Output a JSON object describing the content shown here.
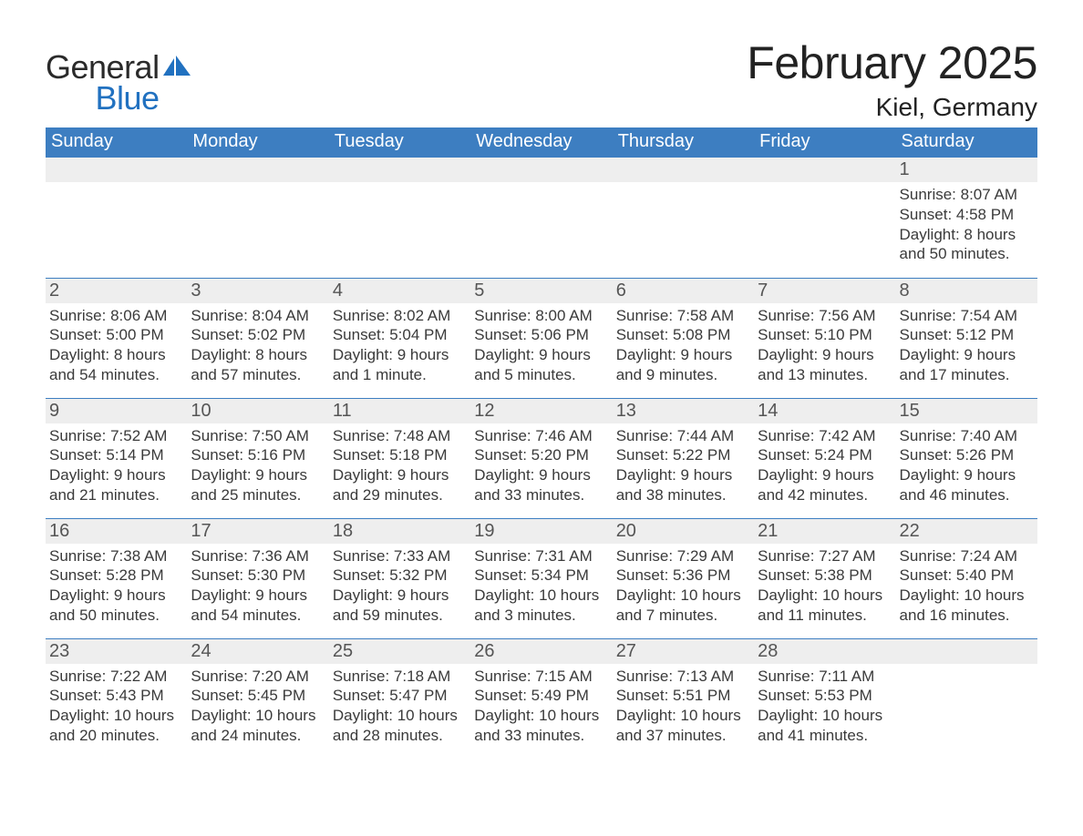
{
  "brand": {
    "word1": "General",
    "word2": "Blue"
  },
  "title": {
    "month_year": "February 2025",
    "location": "Kiel, Germany"
  },
  "colors": {
    "header_blue": "#3d7ec1",
    "row_border": "#3d7ec1",
    "daynum_bg": "#eeeeee",
    "text_dark": "#2a2a2a",
    "logo_blue": "#2171c0"
  },
  "weekdays": [
    "Sunday",
    "Monday",
    "Tuesday",
    "Wednesday",
    "Thursday",
    "Friday",
    "Saturday"
  ],
  "weeks": [
    [
      {
        "n": "",
        "sunrise": "",
        "sunset": "",
        "daylight_l1": "",
        "daylight_l2": ""
      },
      {
        "n": "",
        "sunrise": "",
        "sunset": "",
        "daylight_l1": "",
        "daylight_l2": ""
      },
      {
        "n": "",
        "sunrise": "",
        "sunset": "",
        "daylight_l1": "",
        "daylight_l2": ""
      },
      {
        "n": "",
        "sunrise": "",
        "sunset": "",
        "daylight_l1": "",
        "daylight_l2": ""
      },
      {
        "n": "",
        "sunrise": "",
        "sunset": "",
        "daylight_l1": "",
        "daylight_l2": ""
      },
      {
        "n": "",
        "sunrise": "",
        "sunset": "",
        "daylight_l1": "",
        "daylight_l2": ""
      },
      {
        "n": "1",
        "sunrise": "Sunrise: 8:07 AM",
        "sunset": "Sunset: 4:58 PM",
        "daylight_l1": "Daylight: 8 hours",
        "daylight_l2": "and 50 minutes."
      }
    ],
    [
      {
        "n": "2",
        "sunrise": "Sunrise: 8:06 AM",
        "sunset": "Sunset: 5:00 PM",
        "daylight_l1": "Daylight: 8 hours",
        "daylight_l2": "and 54 minutes."
      },
      {
        "n": "3",
        "sunrise": "Sunrise: 8:04 AM",
        "sunset": "Sunset: 5:02 PM",
        "daylight_l1": "Daylight: 8 hours",
        "daylight_l2": "and 57 minutes."
      },
      {
        "n": "4",
        "sunrise": "Sunrise: 8:02 AM",
        "sunset": "Sunset: 5:04 PM",
        "daylight_l1": "Daylight: 9 hours",
        "daylight_l2": "and 1 minute."
      },
      {
        "n": "5",
        "sunrise": "Sunrise: 8:00 AM",
        "sunset": "Sunset: 5:06 PM",
        "daylight_l1": "Daylight: 9 hours",
        "daylight_l2": "and 5 minutes."
      },
      {
        "n": "6",
        "sunrise": "Sunrise: 7:58 AM",
        "sunset": "Sunset: 5:08 PM",
        "daylight_l1": "Daylight: 9 hours",
        "daylight_l2": "and 9 minutes."
      },
      {
        "n": "7",
        "sunrise": "Sunrise: 7:56 AM",
        "sunset": "Sunset: 5:10 PM",
        "daylight_l1": "Daylight: 9 hours",
        "daylight_l2": "and 13 minutes."
      },
      {
        "n": "8",
        "sunrise": "Sunrise: 7:54 AM",
        "sunset": "Sunset: 5:12 PM",
        "daylight_l1": "Daylight: 9 hours",
        "daylight_l2": "and 17 minutes."
      }
    ],
    [
      {
        "n": "9",
        "sunrise": "Sunrise: 7:52 AM",
        "sunset": "Sunset: 5:14 PM",
        "daylight_l1": "Daylight: 9 hours",
        "daylight_l2": "and 21 minutes."
      },
      {
        "n": "10",
        "sunrise": "Sunrise: 7:50 AM",
        "sunset": "Sunset: 5:16 PM",
        "daylight_l1": "Daylight: 9 hours",
        "daylight_l2": "and 25 minutes."
      },
      {
        "n": "11",
        "sunrise": "Sunrise: 7:48 AM",
        "sunset": "Sunset: 5:18 PM",
        "daylight_l1": "Daylight: 9 hours",
        "daylight_l2": "and 29 minutes."
      },
      {
        "n": "12",
        "sunrise": "Sunrise: 7:46 AM",
        "sunset": "Sunset: 5:20 PM",
        "daylight_l1": "Daylight: 9 hours",
        "daylight_l2": "and 33 minutes."
      },
      {
        "n": "13",
        "sunrise": "Sunrise: 7:44 AM",
        "sunset": "Sunset: 5:22 PM",
        "daylight_l1": "Daylight: 9 hours",
        "daylight_l2": "and 38 minutes."
      },
      {
        "n": "14",
        "sunrise": "Sunrise: 7:42 AM",
        "sunset": "Sunset: 5:24 PM",
        "daylight_l1": "Daylight: 9 hours",
        "daylight_l2": "and 42 minutes."
      },
      {
        "n": "15",
        "sunrise": "Sunrise: 7:40 AM",
        "sunset": "Sunset: 5:26 PM",
        "daylight_l1": "Daylight: 9 hours",
        "daylight_l2": "and 46 minutes."
      }
    ],
    [
      {
        "n": "16",
        "sunrise": "Sunrise: 7:38 AM",
        "sunset": "Sunset: 5:28 PM",
        "daylight_l1": "Daylight: 9 hours",
        "daylight_l2": "and 50 minutes."
      },
      {
        "n": "17",
        "sunrise": "Sunrise: 7:36 AM",
        "sunset": "Sunset: 5:30 PM",
        "daylight_l1": "Daylight: 9 hours",
        "daylight_l2": "and 54 minutes."
      },
      {
        "n": "18",
        "sunrise": "Sunrise: 7:33 AM",
        "sunset": "Sunset: 5:32 PM",
        "daylight_l1": "Daylight: 9 hours",
        "daylight_l2": "and 59 minutes."
      },
      {
        "n": "19",
        "sunrise": "Sunrise: 7:31 AM",
        "sunset": "Sunset: 5:34 PM",
        "daylight_l1": "Daylight: 10 hours",
        "daylight_l2": "and 3 minutes."
      },
      {
        "n": "20",
        "sunrise": "Sunrise: 7:29 AM",
        "sunset": "Sunset: 5:36 PM",
        "daylight_l1": "Daylight: 10 hours",
        "daylight_l2": "and 7 minutes."
      },
      {
        "n": "21",
        "sunrise": "Sunrise: 7:27 AM",
        "sunset": "Sunset: 5:38 PM",
        "daylight_l1": "Daylight: 10 hours",
        "daylight_l2": "and 11 minutes."
      },
      {
        "n": "22",
        "sunrise": "Sunrise: 7:24 AM",
        "sunset": "Sunset: 5:40 PM",
        "daylight_l1": "Daylight: 10 hours",
        "daylight_l2": "and 16 minutes."
      }
    ],
    [
      {
        "n": "23",
        "sunrise": "Sunrise: 7:22 AM",
        "sunset": "Sunset: 5:43 PM",
        "daylight_l1": "Daylight: 10 hours",
        "daylight_l2": "and 20 minutes."
      },
      {
        "n": "24",
        "sunrise": "Sunrise: 7:20 AM",
        "sunset": "Sunset: 5:45 PM",
        "daylight_l1": "Daylight: 10 hours",
        "daylight_l2": "and 24 minutes."
      },
      {
        "n": "25",
        "sunrise": "Sunrise: 7:18 AM",
        "sunset": "Sunset: 5:47 PM",
        "daylight_l1": "Daylight: 10 hours",
        "daylight_l2": "and 28 minutes."
      },
      {
        "n": "26",
        "sunrise": "Sunrise: 7:15 AM",
        "sunset": "Sunset: 5:49 PM",
        "daylight_l1": "Daylight: 10 hours",
        "daylight_l2": "and 33 minutes."
      },
      {
        "n": "27",
        "sunrise": "Sunrise: 7:13 AM",
        "sunset": "Sunset: 5:51 PM",
        "daylight_l1": "Daylight: 10 hours",
        "daylight_l2": "and 37 minutes."
      },
      {
        "n": "28",
        "sunrise": "Sunrise: 7:11 AM",
        "sunset": "Sunset: 5:53 PM",
        "daylight_l1": "Daylight: 10 hours",
        "daylight_l2": "and 41 minutes."
      },
      {
        "n": "",
        "sunrise": "",
        "sunset": "",
        "daylight_l1": "",
        "daylight_l2": ""
      }
    ]
  ]
}
